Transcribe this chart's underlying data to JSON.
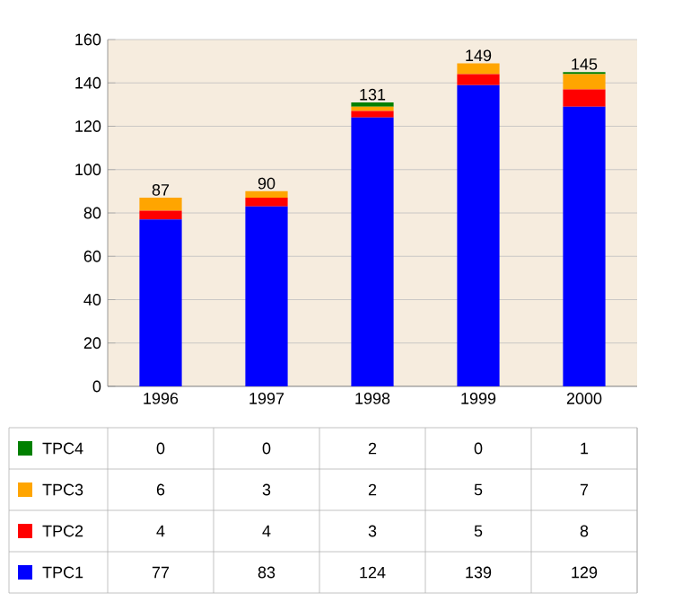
{
  "chart_data": {
    "type": "bar",
    "stacked": true,
    "categories": [
      "1996",
      "1997",
      "1998",
      "1999",
      "2000"
    ],
    "series": [
      {
        "name": "TPC1",
        "color": "#0000ff",
        "values": [
          77,
          83,
          124,
          139,
          129
        ]
      },
      {
        "name": "TPC2",
        "color": "#ff0000",
        "values": [
          4,
          4,
          3,
          5,
          8
        ]
      },
      {
        "name": "TPC3",
        "color": "#ffa500",
        "values": [
          6,
          3,
          2,
          5,
          7
        ]
      },
      {
        "name": "TPC4",
        "color": "#008000",
        "values": [
          0,
          0,
          2,
          0,
          1
        ]
      }
    ],
    "totals": [
      "87",
      "90",
      "131",
      "149",
      "145"
    ],
    "ylim": [
      0,
      160
    ],
    "yticks": [
      0,
      20,
      40,
      60,
      80,
      100,
      120,
      140,
      160
    ],
    "grid": "y",
    "legend": "bottom",
    "data_labels": true
  }
}
